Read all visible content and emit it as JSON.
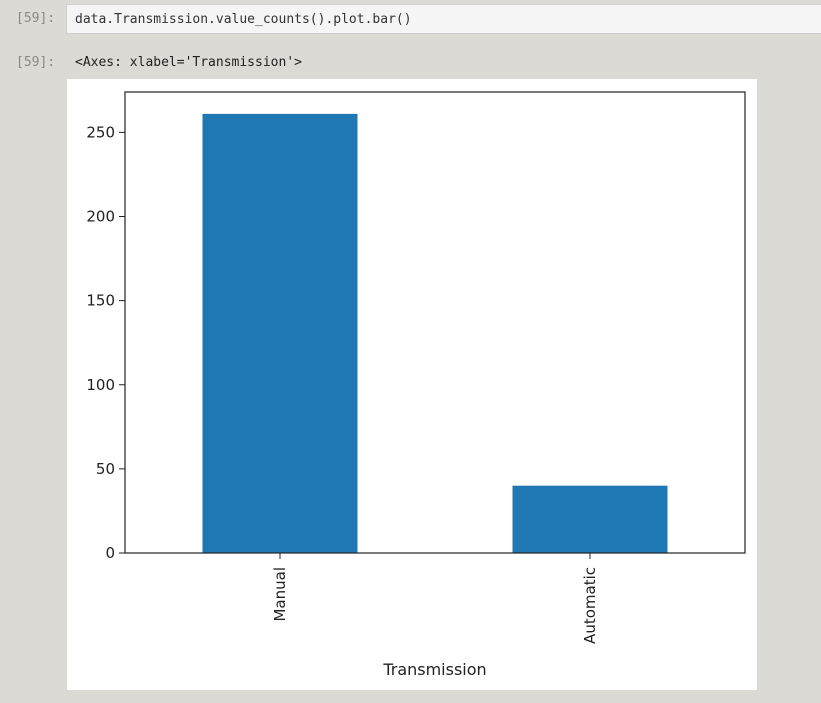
{
  "input_cell": {
    "prompt": "[59]:",
    "code": "data.Transmission.value_counts().plot.bar()"
  },
  "output_cell": {
    "prompt": "[59]:",
    "text": "<Axes: xlabel='Transmission'>"
  },
  "colors": {
    "bar": "#1f77b4",
    "background": "#dcdad5"
  },
  "chart_data": {
    "type": "bar",
    "categories": [
      "Manual",
      "Automatic"
    ],
    "values": [
      261,
      40
    ],
    "xlabel": "Transmission",
    "ylabel": "",
    "ylim": [
      0,
      274
    ],
    "yticks": [
      0,
      50,
      100,
      150,
      200,
      250
    ],
    "grid": false
  }
}
